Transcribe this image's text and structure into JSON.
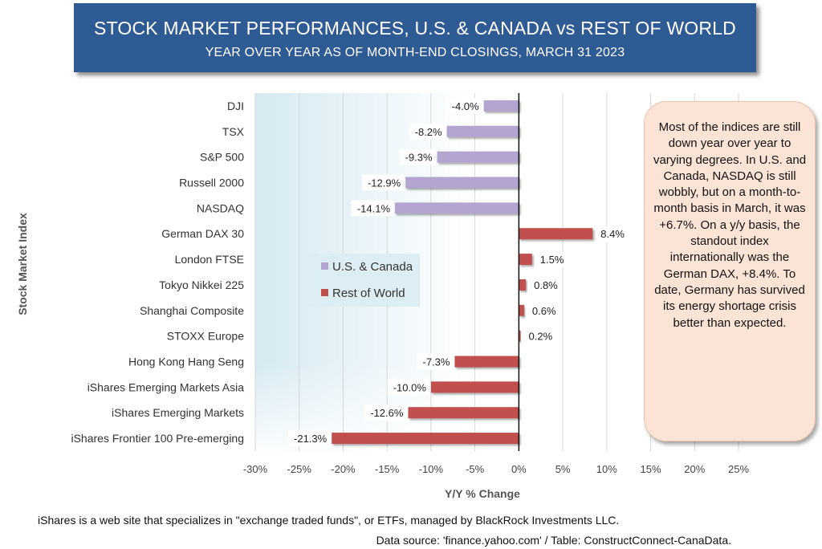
{
  "header": {
    "title": "STOCK MARKET PERFORMANCES, U.S. & CANADA vs REST OF WORLD",
    "subtitle": "YEAR OVER YEAR AS OF MONTH-END CLOSINGS, MARCH 31 2023"
  },
  "chart_data": {
    "type": "bar",
    "orientation": "horizontal",
    "categories": [
      "DJI",
      "TSX",
      "S&P 500",
      "Russell  2000",
      "NASDAQ",
      "German DAX 30",
      "London FTSE",
      "Tokyo Nikkei 225",
      "Shanghai Composite",
      "STOXX Europe",
      "Hong Kong Hang Seng",
      "iShares Emerging Markets Asia",
      "iShares Emerging Markets ",
      "iShares Frontier 100 Pre-emerging"
    ],
    "values": [
      -4.0,
      -8.2,
      -9.3,
      -12.9,
      -14.1,
      8.4,
      1.5,
      0.8,
      0.6,
      0.2,
      -7.3,
      -10.0,
      -12.6,
      -21.3
    ],
    "value_labels": [
      "-4.0%",
      "-8.2%",
      "-9.3%",
      "-12.9%",
      "-14.1%",
      "8.4%",
      "1.5%",
      "0.8%",
      "0.6%",
      "0.2%",
      "-7.3%",
      "-10.0%",
      "-12.6%",
      "-21.3%"
    ],
    "groups": [
      "U.S. & Canada",
      "U.S. & Canada",
      "U.S. & Canada",
      "U.S. & Canada",
      "U.S. & Canada",
      "Rest of World",
      "Rest of World",
      "Rest of World",
      "Rest of World",
      "Rest of World",
      "Rest of World",
      "Rest of World",
      "Rest of World",
      "Rest of World"
    ],
    "series": [
      {
        "name": "U.S. & Canada",
        "color": "#b3a5cf"
      },
      {
        "name": "Rest of World",
        "color": "#c0504d"
      }
    ],
    "xlim": [
      -30,
      25
    ],
    "xticks": [
      -30,
      -25,
      -20,
      -15,
      -10,
      -5,
      0,
      5,
      10,
      15,
      20,
      25
    ],
    "xtick_labels": [
      "-30%",
      "-25%",
      "-20%",
      "-15%",
      "-10%",
      "-5%",
      "0%",
      "5%",
      "10%",
      "15%",
      "20%",
      "25%"
    ],
    "xlabel": "Y/Y % Change",
    "ylabel": "Stock Market Index",
    "grid": "vertical",
    "legend_position": "center-left"
  },
  "note": {
    "text": "Most of the indices are still down year over year to varying degrees. In U.S. and Canada, NASDAQ is still wobbly, but on a month-to-month basis in March, it was +6.7%. On a y/y basis, the  standout index internationally was the German DAX, +8.4%. To date, Germany has survived its energy shortage crisis better than expected."
  },
  "footnotes": {
    "line1": "iShares is a web site that specializes in \"exchange traded funds\", or ETFs, managed by BlackRock Investments LLC.",
    "line2": "Data source: 'finance.yahoo.com' / Table: ConstructConnect-CanaData."
  }
}
